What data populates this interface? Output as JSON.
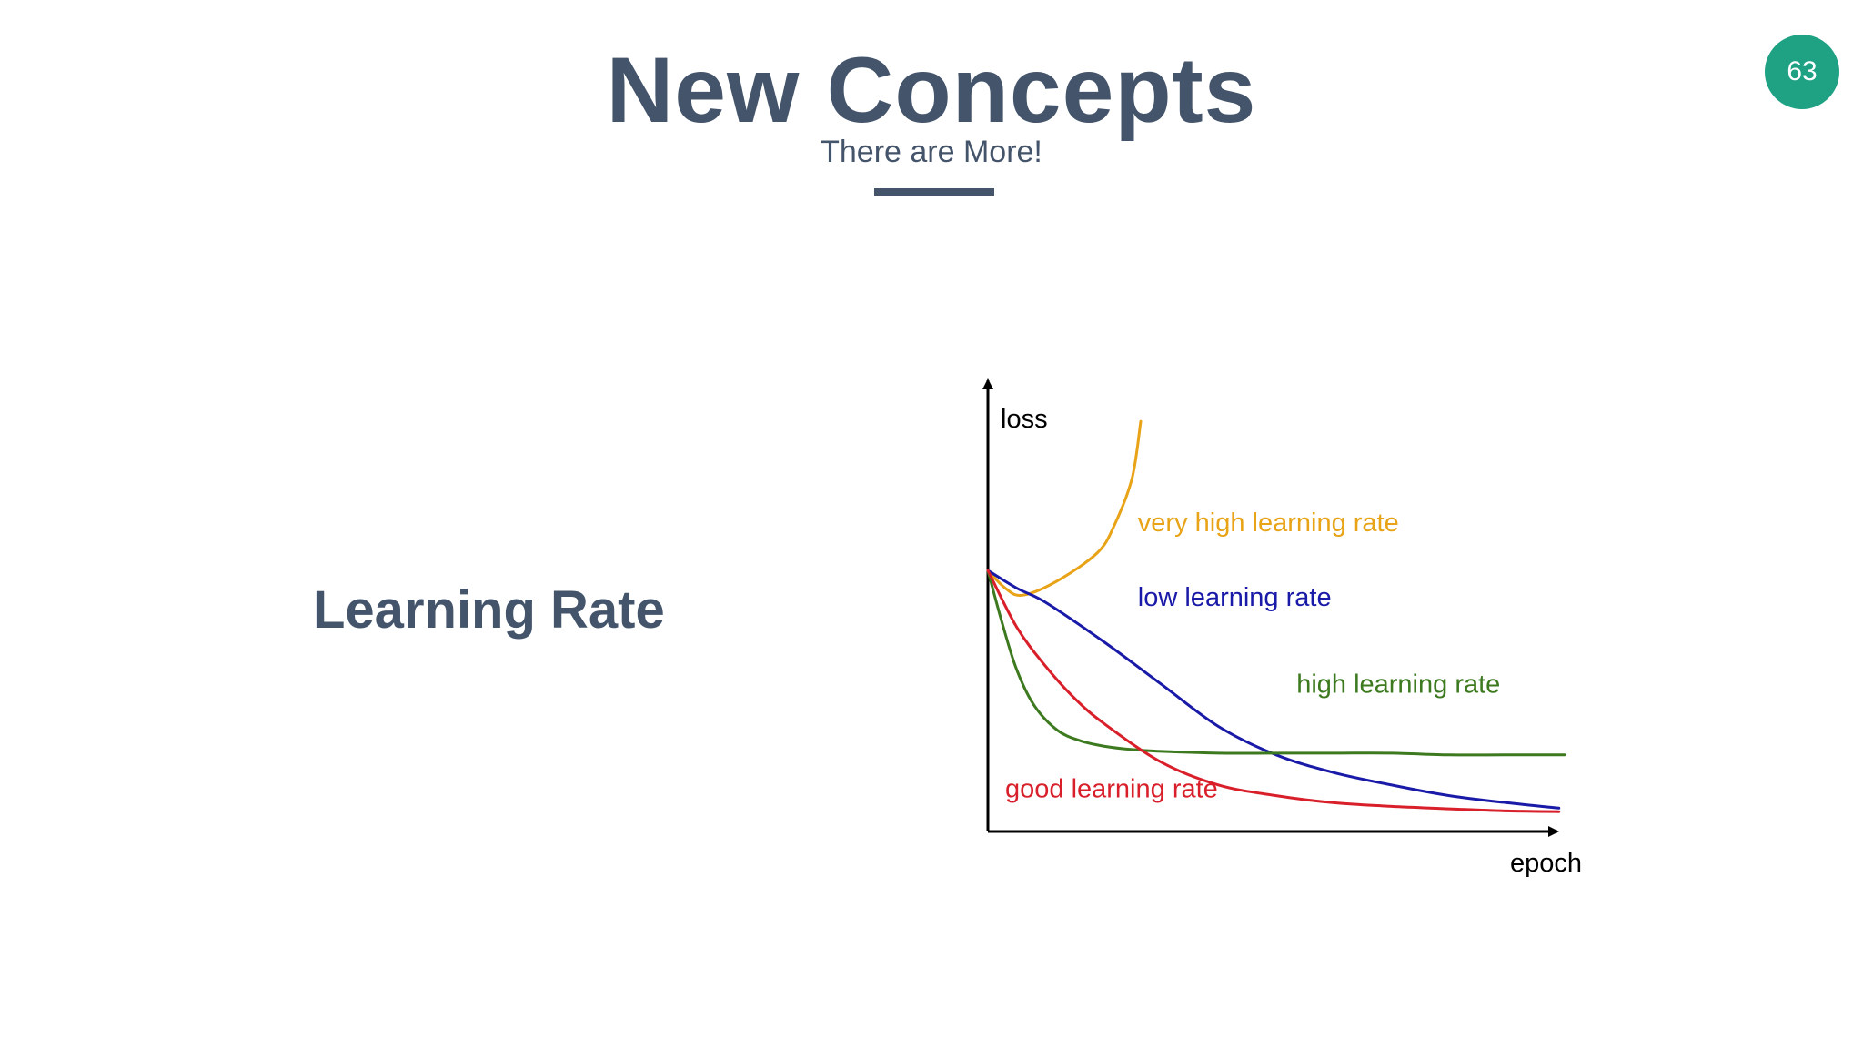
{
  "slide": {
    "title": "New Concepts",
    "subtitle": "There are More!",
    "page_number": "63",
    "topic": "Learning Rate"
  },
  "colors": {
    "heading": "#44546a",
    "badge": "#1fa184"
  },
  "chart_data": {
    "type": "line",
    "title": "",
    "xlabel": "epoch",
    "ylabel": "loss",
    "grid": false,
    "legend": "inline labels beside each curve",
    "axis_ticks": false,
    "xlim": [
      0,
      10
    ],
    "ylim": [
      0,
      10
    ],
    "series": [
      {
        "name": "very high learning rate",
        "color": "#e8a317",
        "x": [
          0,
          0.3,
          0.6,
          1.2,
          1.9,
          2.2,
          2.5,
          2.65
        ],
        "y": [
          7.0,
          6.5,
          6.3,
          6.7,
          7.5,
          8.3,
          9.6,
          11.2
        ]
      },
      {
        "name": "low learning rate",
        "color": "#1a1aa8",
        "x": [
          0,
          0.5,
          1,
          2,
          3,
          4,
          5,
          6,
          7,
          8,
          9,
          9.9
        ],
        "y": [
          7.0,
          6.5,
          6.1,
          5.0,
          3.8,
          2.6,
          1.8,
          1.3,
          0.95,
          0.65,
          0.45,
          0.3
        ]
      },
      {
        "name": "high learning rate",
        "color": "#3d7a1f",
        "x": [
          0,
          0.25,
          0.5,
          0.8,
          1.2,
          1.6,
          2,
          2.5,
          3,
          4,
          5,
          6,
          7,
          8,
          9,
          10
        ],
        "y": [
          7.0,
          5.5,
          4.2,
          3.2,
          2.5,
          2.2,
          2.05,
          1.95,
          1.9,
          1.85,
          1.85,
          1.85,
          1.85,
          1.8,
          1.8,
          1.8
        ]
      },
      {
        "name": "good learning rate",
        "color": "#d81f2a",
        "x": [
          0,
          0.5,
          1,
          1.5,
          2,
          3,
          4,
          5,
          6,
          7,
          8,
          9,
          9.9
        ],
        "y": [
          7.0,
          5.4,
          4.3,
          3.4,
          2.7,
          1.6,
          0.95,
          0.65,
          0.45,
          0.35,
          0.28,
          0.22,
          0.2
        ]
      }
    ],
    "labels": [
      {
        "series": 0,
        "text": "very high learning rate",
        "x": 2.6,
        "y": 8.1
      },
      {
        "series": 1,
        "text": "low learning rate",
        "x": 2.6,
        "y": 6.0
      },
      {
        "series": 2,
        "text": "high learning rate",
        "x": 5.35,
        "y": 3.55
      },
      {
        "series": 3,
        "text": "good learning rate",
        "x": 0.3,
        "y": 0.6
      }
    ]
  }
}
